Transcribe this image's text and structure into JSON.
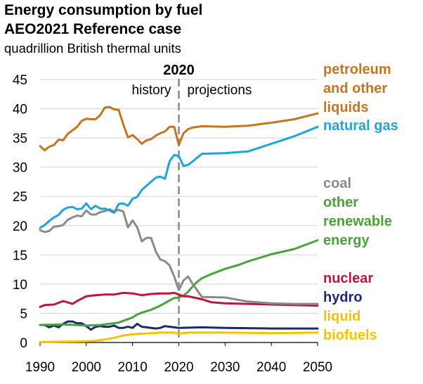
{
  "title_line1": "Energy consumption by fuel",
  "title_line2": "AEO2021 Reference case",
  "subtitle": "quadrillion British thermal units",
  "chart_data": {
    "type": "line",
    "title": "Energy consumption by fuel AEO2021 Reference case",
    "ylabel": "quadrillion British thermal units",
    "xlim": [
      1990,
      2050
    ],
    "ylim": [
      0,
      45
    ],
    "x_ticks": [
      "1990",
      "2000",
      "2010",
      "2020",
      "2030",
      "2040",
      "2050"
    ],
    "y_ticks": [
      "0",
      "5",
      "10",
      "15",
      "20",
      "25",
      "30",
      "35",
      "40",
      "45"
    ],
    "grid": "horizontal",
    "divider": {
      "x": 2020,
      "label": "2020",
      "left_label": "history",
      "right_label": "projections"
    },
    "series": [
      {
        "name": "petroleum and other liquids",
        "color": "#c8741d",
        "label_lines": [
          "petroleum",
          "and other",
          "liquids"
        ],
        "x": [
          1990,
          1991,
          1992,
          1993,
          1994,
          1995,
          1996,
          1997,
          1998,
          1999,
          2000,
          2001,
          2002,
          2003,
          2004,
          2005,
          2006,
          2007,
          2008,
          2009,
          2010,
          2011,
          2012,
          2013,
          2014,
          2015,
          2016,
          2017,
          2018,
          2019,
          2020,
          2021,
          2022,
          2023,
          2025,
          2030,
          2035,
          2040,
          2045,
          2050
        ],
        "y": [
          33.6,
          32.9,
          33.5,
          33.8,
          34.7,
          34.6,
          35.7,
          36.3,
          36.9,
          37.9,
          38.3,
          38.2,
          38.2,
          38.9,
          40.2,
          40.3,
          39.9,
          39.8,
          37.3,
          35.1,
          35.5,
          34.8,
          34.0,
          34.6,
          34.8,
          35.4,
          35.8,
          36.1,
          36.9,
          36.9,
          33.8,
          35.8,
          36.5,
          36.8,
          37.0,
          36.9,
          37.1,
          37.6,
          38.2,
          39.2
        ]
      },
      {
        "name": "natural gas",
        "color": "#1ea5dd",
        "label_lines": [
          "natural gas"
        ],
        "x": [
          1990,
          1991,
          1992,
          1993,
          1994,
          1995,
          1996,
          1997,
          1998,
          1999,
          2000,
          2001,
          2002,
          2003,
          2004,
          2005,
          2006,
          2007,
          2008,
          2009,
          2010,
          2011,
          2012,
          2013,
          2014,
          2015,
          2016,
          2017,
          2018,
          2019,
          2020,
          2021,
          2022,
          2023,
          2025,
          2030,
          2035,
          2040,
          2045,
          2050
        ],
        "y": [
          19.6,
          20.1,
          20.8,
          21.4,
          21.8,
          22.7,
          23.1,
          23.2,
          22.8,
          22.9,
          23.8,
          22.8,
          23.4,
          22.9,
          22.9,
          22.6,
          22.2,
          23.7,
          23.8,
          23.4,
          24.6,
          24.9,
          26.1,
          26.8,
          27.5,
          28.2,
          28.4,
          28.0,
          31.0,
          32.1,
          31.9,
          30.2,
          30.4,
          31.0,
          32.3,
          32.4,
          32.7,
          34.0,
          35.3,
          36.9
        ]
      },
      {
        "name": "coal",
        "color": "#8a8a8a",
        "label_lines": [
          "coal"
        ],
        "x": [
          1990,
          1991,
          1992,
          1993,
          1994,
          1995,
          1996,
          1997,
          1998,
          1999,
          2000,
          2001,
          2002,
          2003,
          2004,
          2005,
          2006,
          2007,
          2008,
          2009,
          2010,
          2011,
          2012,
          2013,
          2014,
          2015,
          2016,
          2017,
          2018,
          2019,
          2020,
          2021,
          2022,
          2023,
          2025,
          2030,
          2035,
          2040,
          2045,
          2050
        ],
        "y": [
          19.2,
          18.9,
          19.1,
          19.8,
          19.9,
          20.1,
          21.0,
          21.4,
          21.7,
          21.6,
          22.6,
          21.9,
          21.9,
          22.3,
          22.5,
          22.8,
          22.4,
          22.7,
          22.4,
          19.7,
          20.9,
          19.7,
          17.3,
          17.9,
          17.9,
          15.6,
          14.2,
          13.9,
          13.2,
          11.3,
          9.0,
          10.6,
          11.3,
          10.0,
          7.8,
          7.7,
          7.0,
          6.7,
          6.6,
          6.6
        ]
      },
      {
        "name": "other renewable energy",
        "color": "#4aa23a",
        "label_lines": [
          "other",
          "renewable",
          "energy"
        ],
        "x": [
          1990,
          1995,
          2000,
          2003,
          2005,
          2007,
          2008,
          2010,
          2011,
          2012,
          2014,
          2016,
          2018,
          2019,
          2020,
          2021,
          2022,
          2023,
          2024,
          2025,
          2027,
          2030,
          2033,
          2035,
          2040,
          2045,
          2050
        ],
        "y": [
          3.0,
          3.1,
          2.9,
          3.0,
          3.2,
          3.4,
          3.7,
          4.3,
          4.8,
          5.1,
          5.6,
          6.3,
          7.2,
          7.6,
          7.7,
          8.0,
          8.7,
          9.6,
          10.4,
          11.0,
          11.7,
          12.6,
          13.3,
          13.9,
          15.1,
          16.0,
          17.5
        ]
      },
      {
        "name": "nuclear",
        "color": "#c1163a",
        "label_lines": [
          "nuclear"
        ],
        "x": [
          1990,
          1991,
          1993,
          1995,
          1997,
          1998,
          2000,
          2002,
          2004,
          2006,
          2008,
          2010,
          2012,
          2014,
          2016,
          2018,
          2019,
          2020,
          2021,
          2022,
          2025,
          2027,
          2030,
          2035,
          2040,
          2045,
          2050
        ],
        "y": [
          6.1,
          6.4,
          6.5,
          7.1,
          6.6,
          7.1,
          7.9,
          8.1,
          8.2,
          8.2,
          8.5,
          8.4,
          8.1,
          8.3,
          8.4,
          8.4,
          8.5,
          8.2,
          7.9,
          7.9,
          7.4,
          6.9,
          6.7,
          6.6,
          6.5,
          6.4,
          6.3
        ]
      },
      {
        "name": "hydro",
        "color": "#1a2c6b",
        "label_lines": [
          "hydro"
        ],
        "x": [
          1990,
          1991,
          1992,
          1993,
          1994,
          1995,
          1996,
          1997,
          1998,
          1999,
          2000,
          2001,
          2002,
          2003,
          2004,
          2005,
          2006,
          2007,
          2008,
          2009,
          2010,
          2011,
          2012,
          2013,
          2014,
          2015,
          2016,
          2017,
          2018,
          2019,
          2020,
          2025,
          2030,
          2040,
          2050
        ],
        "y": [
          3.0,
          3.0,
          2.6,
          2.9,
          2.6,
          3.2,
          3.6,
          3.6,
          3.3,
          3.3,
          2.8,
          2.2,
          2.7,
          2.8,
          2.7,
          2.7,
          2.9,
          2.5,
          2.5,
          2.7,
          2.5,
          3.2,
          2.7,
          2.6,
          2.5,
          2.4,
          2.5,
          2.8,
          2.7,
          2.6,
          2.5,
          2.6,
          2.5,
          2.4,
          2.4
        ]
      },
      {
        "name": "liquid biofuels",
        "color": "#f5c400",
        "label_lines": [
          "liquid",
          "biofuels"
        ],
        "x": [
          1990,
          1995,
          2000,
          2002,
          2004,
          2006,
          2007,
          2008,
          2010,
          2012,
          2014,
          2016,
          2018,
          2019,
          2020,
          2021,
          2022,
          2025,
          2030,
          2040,
          2050
        ],
        "y": [
          0.1,
          0.15,
          0.2,
          0.3,
          0.5,
          0.8,
          1.0,
          1.2,
          1.4,
          1.5,
          1.6,
          1.7,
          1.7,
          1.7,
          1.5,
          1.6,
          1.7,
          1.7,
          1.7,
          1.6,
          1.7
        ]
      }
    ]
  }
}
